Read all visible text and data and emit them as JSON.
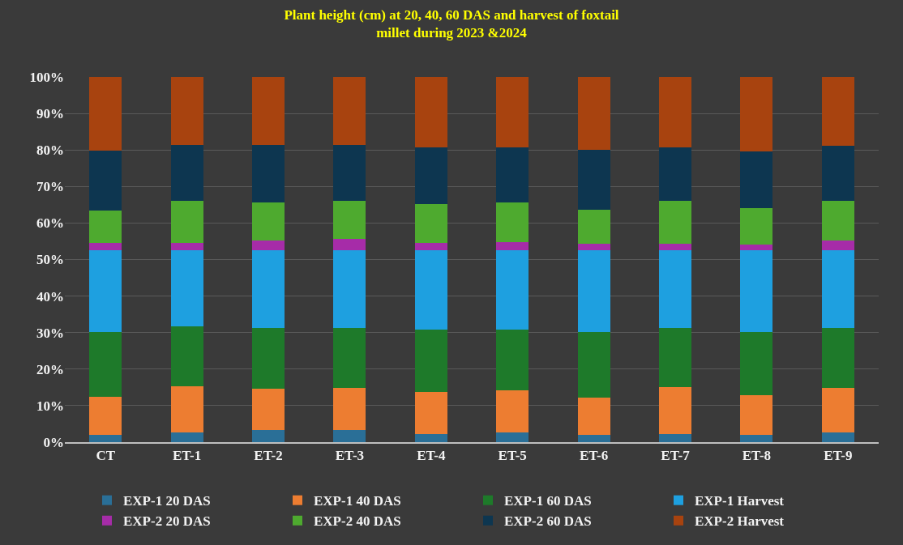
{
  "chart_data": {
    "type": "bar",
    "stacked": true,
    "title": "Plant height (cm) at 20, 40, 60 DAS and harvest of foxtail\nmillet during 2023 &2024",
    "categories": [
      "CT",
      "ET-1",
      "ET-2",
      "ET-3",
      "ET-4",
      "ET-5",
      "ET-6",
      "ET-7",
      "ET-8",
      "ET-9"
    ],
    "series": [
      {
        "name": "EXP-1 20 DAS",
        "color": "#2a6f97",
        "values": [
          2.1,
          2.6,
          3.3,
          3.3,
          2.2,
          2.7,
          1.9,
          2.2,
          1.9,
          2.7
        ]
      },
      {
        "name": "EXP-1 40 DAS",
        "color": "#ed7d31",
        "values": [
          10.3,
          12.8,
          11.3,
          11.6,
          11.6,
          11.5,
          10.3,
          12.8,
          10.9,
          12.1
        ]
      },
      {
        "name": "EXP-1 60 DAS",
        "color": "#1e7a2a",
        "values": [
          17.8,
          16.2,
          16.6,
          16.3,
          17.1,
          16.7,
          17.9,
          16.3,
          17.3,
          16.5
        ]
      },
      {
        "name": "EXP-1 Harvest",
        "color": "#1ea0e0",
        "values": [
          22.4,
          21.0,
          21.4,
          21.4,
          21.6,
          21.6,
          22.4,
          21.2,
          22.4,
          21.2
        ]
      },
      {
        "name": "EXP-2 20 DAS",
        "color": "#a62ca8",
        "values": [
          1.9,
          1.9,
          2.7,
          3.0,
          2.1,
          2.3,
          1.9,
          1.9,
          1.6,
          2.8
        ]
      },
      {
        "name": "EXP-2 40 DAS",
        "color": "#4eaa2f",
        "values": [
          9.0,
          11.6,
          10.4,
          10.5,
          10.6,
          10.8,
          9.2,
          11.6,
          9.9,
          10.7
        ]
      },
      {
        "name": "EXP-2 60 DAS",
        "color": "#0d3650",
        "values": [
          16.3,
          15.2,
          15.6,
          15.2,
          15.5,
          15.1,
          16.4,
          14.7,
          15.6,
          15.2
        ]
      },
      {
        "name": "EXP-2 Harvest",
        "color": "#a8430f",
        "values": [
          20.2,
          18.7,
          18.7,
          18.7,
          19.3,
          19.3,
          20.0,
          19.3,
          20.4,
          18.8
        ]
      }
    ],
    "ylim": [
      0,
      100
    ],
    "yticks": [
      {
        "value": 0,
        "label": "0%"
      },
      {
        "value": 10,
        "label": "10%"
      },
      {
        "value": 20,
        "label": "20%"
      },
      {
        "value": 30,
        "label": "30%"
      },
      {
        "value": 40,
        "label": "40%"
      },
      {
        "value": 50,
        "label": "50%"
      },
      {
        "value": 60,
        "label": "60%"
      },
      {
        "value": 70,
        "label": "70%"
      },
      {
        "value": 80,
        "label": "80%"
      },
      {
        "value": 90,
        "label": "90%"
      },
      {
        "value": 100,
        "label": "100%"
      }
    ],
    "grid": "y",
    "legend": "bottom"
  }
}
